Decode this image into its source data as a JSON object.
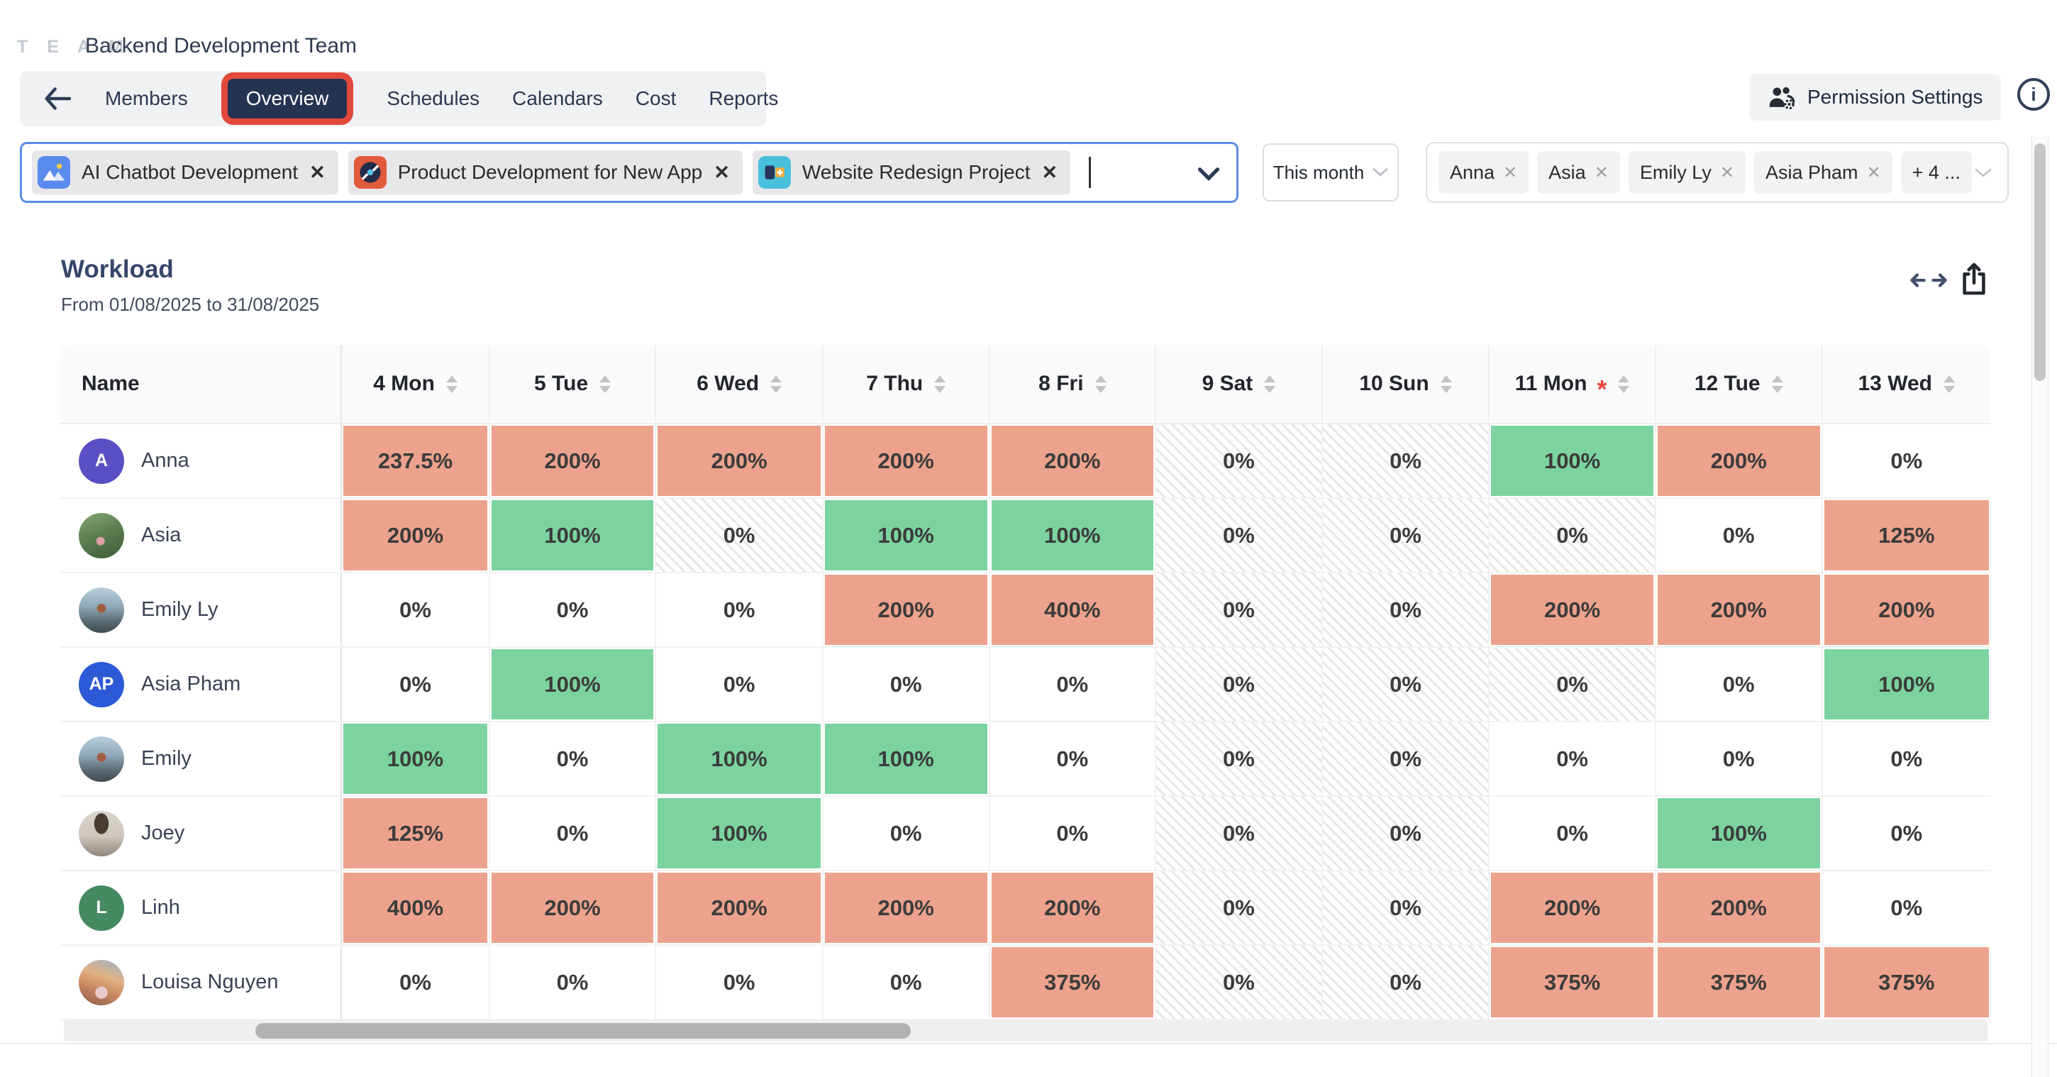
{
  "header": {
    "logo": "T E A M",
    "team_name": "Backend Development Team",
    "tabs": [
      "Members",
      "Overview",
      "Schedules",
      "Calendars",
      "Cost",
      "Reports"
    ],
    "active_tab": "Overview",
    "permission_button": "Permission Settings",
    "info_glyph": "i"
  },
  "filters": {
    "projects": [
      {
        "name": "AI Chatbot Development",
        "icon": "mountains-icon",
        "color": "#5B8BED"
      },
      {
        "name": "Product Development for New App",
        "icon": "disc-icon",
        "color": "#E25A3C"
      },
      {
        "name": "Website Redesign Project",
        "icon": "blocks-icon",
        "color": "#49C0DB"
      }
    ],
    "remove_glyph": "✕",
    "date_range_label": "This month",
    "members": [
      "Anna",
      "Asia",
      "Emily Ly",
      "Asia Pham"
    ],
    "members_more": "+ 4 ..."
  },
  "workload": {
    "title": "Workload",
    "subtitle": "From 01/08/2025 to 31/08/2025",
    "name_header": "Name",
    "columns": [
      {
        "label": "4 Mon"
      },
      {
        "label": "5 Tue"
      },
      {
        "label": "6 Wed"
      },
      {
        "label": "7 Thu"
      },
      {
        "label": "8 Fri"
      },
      {
        "label": "9 Sat"
      },
      {
        "label": "10 Sun"
      },
      {
        "label": "11 Mon",
        "holiday": true
      },
      {
        "label": "12 Tue"
      },
      {
        "label": "13 Wed"
      }
    ],
    "holiday_marker": "*",
    "rows": [
      {
        "name": "Anna",
        "avatar": {
          "type": "initials",
          "text": "A",
          "color": "#5B4FC4"
        },
        "cells": [
          {
            "v": "237.5%",
            "s": "over"
          },
          {
            "v": "200%",
            "s": "over"
          },
          {
            "v": "200%",
            "s": "over"
          },
          {
            "v": "200%",
            "s": "over"
          },
          {
            "v": "200%",
            "s": "over"
          },
          {
            "v": "0%",
            "s": "off"
          },
          {
            "v": "0%",
            "s": "off"
          },
          {
            "v": "100%",
            "s": "full"
          },
          {
            "v": "200%",
            "s": "over"
          },
          {
            "v": "0%",
            "s": "zero"
          }
        ]
      },
      {
        "name": "Asia",
        "avatar": {
          "type": "photo",
          "photo": "asia"
        },
        "cells": [
          {
            "v": "200%",
            "s": "over"
          },
          {
            "v": "100%",
            "s": "full"
          },
          {
            "v": "0%",
            "s": "off"
          },
          {
            "v": "100%",
            "s": "full"
          },
          {
            "v": "100%",
            "s": "full"
          },
          {
            "v": "0%",
            "s": "off"
          },
          {
            "v": "0%",
            "s": "off"
          },
          {
            "v": "0%",
            "s": "off"
          },
          {
            "v": "0%",
            "s": "zero"
          },
          {
            "v": "125%",
            "s": "over"
          }
        ]
      },
      {
        "name": "Emily Ly",
        "avatar": {
          "type": "photo",
          "photo": "emily"
        },
        "cells": [
          {
            "v": "0%",
            "s": "zero"
          },
          {
            "v": "0%",
            "s": "zero"
          },
          {
            "v": "0%",
            "s": "zero"
          },
          {
            "v": "200%",
            "s": "over"
          },
          {
            "v": "400%",
            "s": "over"
          },
          {
            "v": "0%",
            "s": "off"
          },
          {
            "v": "0%",
            "s": "off"
          },
          {
            "v": "200%",
            "s": "over"
          },
          {
            "v": "200%",
            "s": "over"
          },
          {
            "v": "200%",
            "s": "over"
          }
        ]
      },
      {
        "name": "Asia Pham",
        "avatar": {
          "type": "initials",
          "text": "AP",
          "color": "#2C59D6"
        },
        "cells": [
          {
            "v": "0%",
            "s": "zero"
          },
          {
            "v": "100%",
            "s": "full"
          },
          {
            "v": "0%",
            "s": "zero"
          },
          {
            "v": "0%",
            "s": "zero"
          },
          {
            "v": "0%",
            "s": "zero"
          },
          {
            "v": "0%",
            "s": "off"
          },
          {
            "v": "0%",
            "s": "off"
          },
          {
            "v": "0%",
            "s": "off"
          },
          {
            "v": "0%",
            "s": "zero"
          },
          {
            "v": "100%",
            "s": "full"
          }
        ]
      },
      {
        "name": "Emily",
        "avatar": {
          "type": "photo",
          "photo": "emily"
        },
        "cells": [
          {
            "v": "100%",
            "s": "full"
          },
          {
            "v": "0%",
            "s": "zero"
          },
          {
            "v": "100%",
            "s": "full"
          },
          {
            "v": "100%",
            "s": "full"
          },
          {
            "v": "0%",
            "s": "zero"
          },
          {
            "v": "0%",
            "s": "off"
          },
          {
            "v": "0%",
            "s": "off"
          },
          {
            "v": "0%",
            "s": "zero"
          },
          {
            "v": "0%",
            "s": "zero"
          },
          {
            "v": "0%",
            "s": "zero"
          }
        ]
      },
      {
        "name": "Joey",
        "avatar": {
          "type": "photo",
          "photo": "joey"
        },
        "cells": [
          {
            "v": "125%",
            "s": "over"
          },
          {
            "v": "0%",
            "s": "zero"
          },
          {
            "v": "100%",
            "s": "full"
          },
          {
            "v": "0%",
            "s": "zero"
          },
          {
            "v": "0%",
            "s": "zero"
          },
          {
            "v": "0%",
            "s": "off"
          },
          {
            "v": "0%",
            "s": "off"
          },
          {
            "v": "0%",
            "s": "zero"
          },
          {
            "v": "100%",
            "s": "full"
          },
          {
            "v": "0%",
            "s": "zero"
          }
        ]
      },
      {
        "name": "Linh",
        "avatar": {
          "type": "initials",
          "text": "L",
          "color": "#458A60"
        },
        "cells": [
          {
            "v": "400%",
            "s": "over"
          },
          {
            "v": "200%",
            "s": "over"
          },
          {
            "v": "200%",
            "s": "over"
          },
          {
            "v": "200%",
            "s": "over"
          },
          {
            "v": "200%",
            "s": "over"
          },
          {
            "v": "0%",
            "s": "off"
          },
          {
            "v": "0%",
            "s": "off"
          },
          {
            "v": "200%",
            "s": "over"
          },
          {
            "v": "200%",
            "s": "over"
          },
          {
            "v": "0%",
            "s": "zero"
          }
        ]
      },
      {
        "name": "Louisa Nguyen",
        "avatar": {
          "type": "photo",
          "photo": "louisa"
        },
        "cells": [
          {
            "v": "0%",
            "s": "zero"
          },
          {
            "v": "0%",
            "s": "zero"
          },
          {
            "v": "0%",
            "s": "zero"
          },
          {
            "v": "0%",
            "s": "zero"
          },
          {
            "v": "375%",
            "s": "over"
          },
          {
            "v": "0%",
            "s": "off"
          },
          {
            "v": "0%",
            "s": "off"
          },
          {
            "v": "375%",
            "s": "over"
          },
          {
            "v": "375%",
            "s": "over"
          },
          {
            "v": "375%",
            "s": "over"
          }
        ]
      }
    ]
  },
  "colors": {
    "overload": "#ECA28C",
    "full_load": "#7CD3A0",
    "active_tab_bg": "#24334F",
    "highlight_red": "#E1493C",
    "focus_blue": "#5D8DE8",
    "holiday_red": "#E2483D"
  }
}
